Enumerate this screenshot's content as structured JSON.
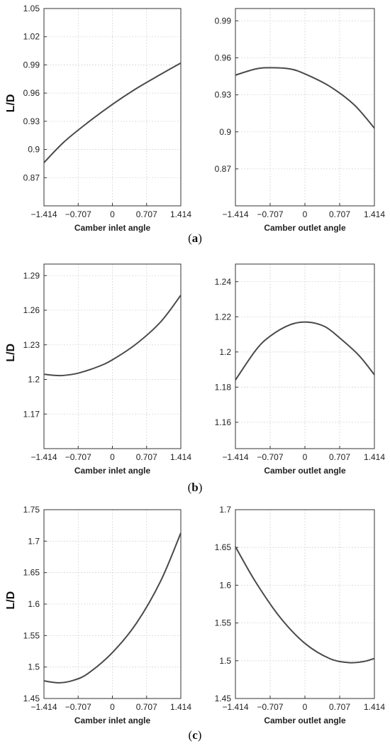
{
  "panels": [
    {
      "label_open": "(",
      "label_letter": "a",
      "label_close": ")"
    },
    {
      "label_open": "(",
      "label_letter": "b",
      "label_close": ")"
    },
    {
      "label_open": "(",
      "label_letter": "c",
      "label_close": ")"
    }
  ],
  "chart_data": [
    {
      "type": "line",
      "panel": "a",
      "xlabel": "Camber inlet angle",
      "ylabel": "L/D",
      "xlim": [
        -1.414,
        1.414
      ],
      "ylim": [
        0.84,
        1.05
      ],
      "xticks": [
        "-1.414",
        "-0.707",
        "0",
        "0.707",
        "1.414"
      ],
      "yticks": [
        "0.87",
        "0.9",
        "0.93",
        "0.96",
        "0.99",
        "1.02",
        "1.05"
      ],
      "grid": true,
      "series": [
        {
          "x": [
            -1.414,
            -1.0,
            -0.5,
            0,
            0.5,
            1.0,
            1.414
          ],
          "y": [
            0.886,
            0.908,
            0.929,
            0.948,
            0.965,
            0.98,
            0.992
          ]
        }
      ]
    },
    {
      "type": "line",
      "panel": "a",
      "xlabel": "Camber outlet angle",
      "ylabel": "",
      "xlim": [
        -1.414,
        1.414
      ],
      "ylim": [
        0.84,
        1.0
      ],
      "xticks": [
        "-1.414",
        "-0.707",
        "0",
        "0.707",
        "1.414"
      ],
      "yticks": [
        "0.87",
        "0.9",
        "0.93",
        "0.96",
        "0.99"
      ],
      "grid": true,
      "series": [
        {
          "x": [
            -1.414,
            -1.0,
            -0.707,
            -0.3,
            0,
            0.5,
            1.0,
            1.414
          ],
          "y": [
            0.946,
            0.951,
            0.952,
            0.951,
            0.947,
            0.937,
            0.922,
            0.903
          ]
        }
      ]
    },
    {
      "type": "line",
      "panel": "b",
      "xlabel": "Camber inlet angle",
      "ylabel": "L/D",
      "xlim": [
        -1.414,
        1.414
      ],
      "ylim": [
        1.14,
        1.3
      ],
      "xticks": [
        "-1.414",
        "-0.707",
        "0",
        "0.707",
        "1.414"
      ],
      "yticks": [
        "1.17",
        "1.2",
        "1.23",
        "1.26",
        "1.29"
      ],
      "grid": true,
      "series": [
        {
          "x": [
            -1.414,
            -1.2,
            -1.0,
            -0.7,
            -0.3,
            0,
            0.5,
            1.0,
            1.414
          ],
          "y": [
            1.2045,
            1.2035,
            1.2035,
            1.2055,
            1.211,
            1.217,
            1.231,
            1.25,
            1.273
          ]
        }
      ]
    },
    {
      "type": "line",
      "panel": "b",
      "xlabel": "Camber outlet angle",
      "ylabel": "",
      "xlim": [
        -1.414,
        1.414
      ],
      "ylim": [
        1.145,
        1.25
      ],
      "xticks": [
        "-1.414",
        "-0.707",
        "0",
        "0.707",
        "1.414"
      ],
      "yticks": [
        "1.16",
        "1.18",
        "1.2",
        "1.22",
        "1.24"
      ],
      "grid": true,
      "series": [
        {
          "x": [
            -1.414,
            -1.0,
            -0.707,
            -0.3,
            0.05,
            0.4,
            0.707,
            1.1,
            1.414
          ],
          "y": [
            1.184,
            1.201,
            1.209,
            1.2155,
            1.217,
            1.2145,
            1.208,
            1.198,
            1.187
          ]
        }
      ]
    },
    {
      "type": "line",
      "panel": "c",
      "xlabel": "Camber inlet angle",
      "ylabel": "L/D",
      "xlim": [
        -1.414,
        1.414
      ],
      "ylim": [
        1.45,
        1.75
      ],
      "xticks": [
        "-1.414",
        "-0.707",
        "0",
        "0.707",
        "1.414"
      ],
      "yticks": [
        "1.45",
        "1.5",
        "1.55",
        "1.6",
        "1.65",
        "1.7",
        "1.75"
      ],
      "grid": true,
      "series": [
        {
          "x": [
            -1.414,
            -1.1,
            -0.8,
            -0.5,
            0,
            0.5,
            1.0,
            1.414
          ],
          "y": [
            1.478,
            1.475,
            1.479,
            1.49,
            1.523,
            1.57,
            1.637,
            1.713
          ]
        }
      ]
    },
    {
      "type": "line",
      "panel": "c",
      "xlabel": "Camber outlet angle",
      "ylabel": "",
      "xlim": [
        -1.414,
        1.414
      ],
      "ylim": [
        1.45,
        1.7
      ],
      "xticks": [
        "-1.414",
        "-0.707",
        "0",
        "0.707",
        "1.414"
      ],
      "yticks": [
        "1.45",
        "1.5",
        "1.55",
        "1.6",
        "1.65",
        "1.7"
      ],
      "grid": true,
      "series": [
        {
          "x": [
            -1.414,
            -1.0,
            -0.5,
            0,
            0.5,
            0.9,
            1.2,
            1.414
          ],
          "y": [
            1.651,
            1.604,
            1.557,
            1.523,
            1.503,
            1.4975,
            1.499,
            1.503
          ]
        }
      ]
    }
  ]
}
